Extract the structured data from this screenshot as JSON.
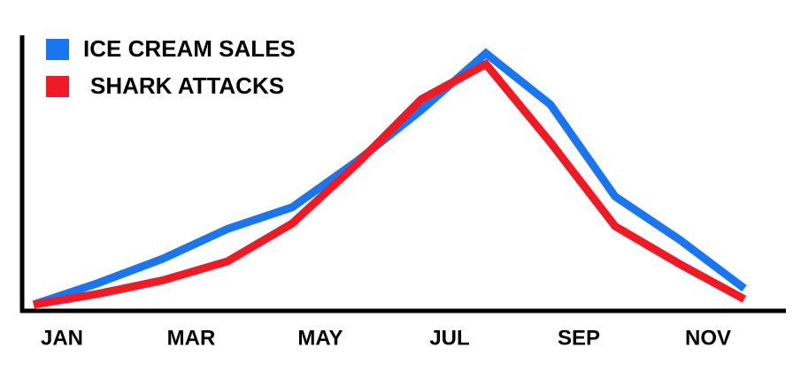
{
  "chart_data": {
    "type": "line",
    "categories": [
      "JAN",
      null,
      "MAR",
      null,
      "MAY",
      null,
      "JUL",
      null,
      "SEP",
      null,
      "NOV",
      null
    ],
    "series": [
      {
        "name": "ICE CREAM SALES",
        "color": "#1a75f0",
        "values": [
          1,
          9,
          18,
          29,
          37,
          54,
          73,
          94,
          75,
          41,
          25,
          7
        ]
      },
      {
        "name": "SHARK ATTACKS",
        "color": "#f01a24",
        "values": [
          1,
          5,
          10,
          17,
          31,
          53,
          77,
          90,
          61,
          30,
          16,
          3
        ]
      }
    ],
    "ylim": [
      0,
      100
    ],
    "legend": "top-left"
  }
}
